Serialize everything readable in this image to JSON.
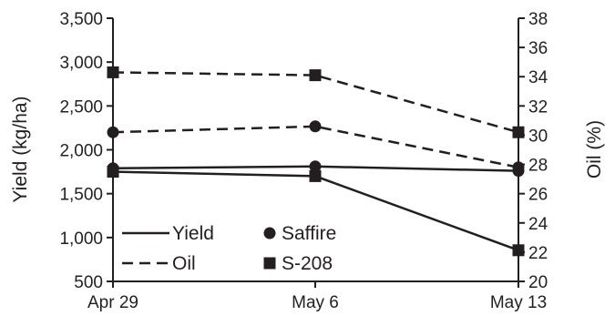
{
  "chart_data": {
    "type": "line",
    "categories": [
      "Apr 29",
      "May 6",
      "May 13"
    ],
    "ylabel": "Yield (kg/ha)",
    "y2label": "Oil (%)",
    "ylim": [
      500,
      3500
    ],
    "y2lim": [
      20,
      38
    ],
    "y_ticks": [
      "500",
      "1,000",
      "1,500",
      "2,000",
      "2,500",
      "3,000",
      "3,500"
    ],
    "y2_ticks": [
      "20",
      "22",
      "24",
      "26",
      "28",
      "30",
      "32",
      "34",
      "36",
      "38"
    ],
    "series": [
      {
        "name": "Saffire",
        "measure": "Yield",
        "axis": "left",
        "line": "solid",
        "marker": "circle",
        "values": [
          1790,
          1810,
          1760
        ]
      },
      {
        "name": "S-208",
        "measure": "Yield",
        "axis": "left",
        "line": "solid",
        "marker": "square",
        "values": [
          1750,
          1700,
          855
        ]
      },
      {
        "name": "Saffire",
        "measure": "Oil",
        "axis": "right",
        "line": "dashed",
        "marker": "circle",
        "values": [
          30.2,
          30.6,
          27.8
        ]
      },
      {
        "name": "S-208",
        "measure": "Oil",
        "axis": "right",
        "line": "dashed",
        "marker": "square",
        "values": [
          34.3,
          34.1,
          30.2
        ]
      }
    ],
    "legend": {
      "placement": "bottom-left",
      "line_styles": [
        {
          "style": "solid",
          "label": "Yield"
        },
        {
          "style": "dashed",
          "label": "Oil"
        }
      ],
      "markers": [
        {
          "marker": "circle",
          "label": "Saffire"
        },
        {
          "marker": "square",
          "label": "S-208"
        }
      ]
    },
    "grid": false,
    "color": "#231f20"
  }
}
